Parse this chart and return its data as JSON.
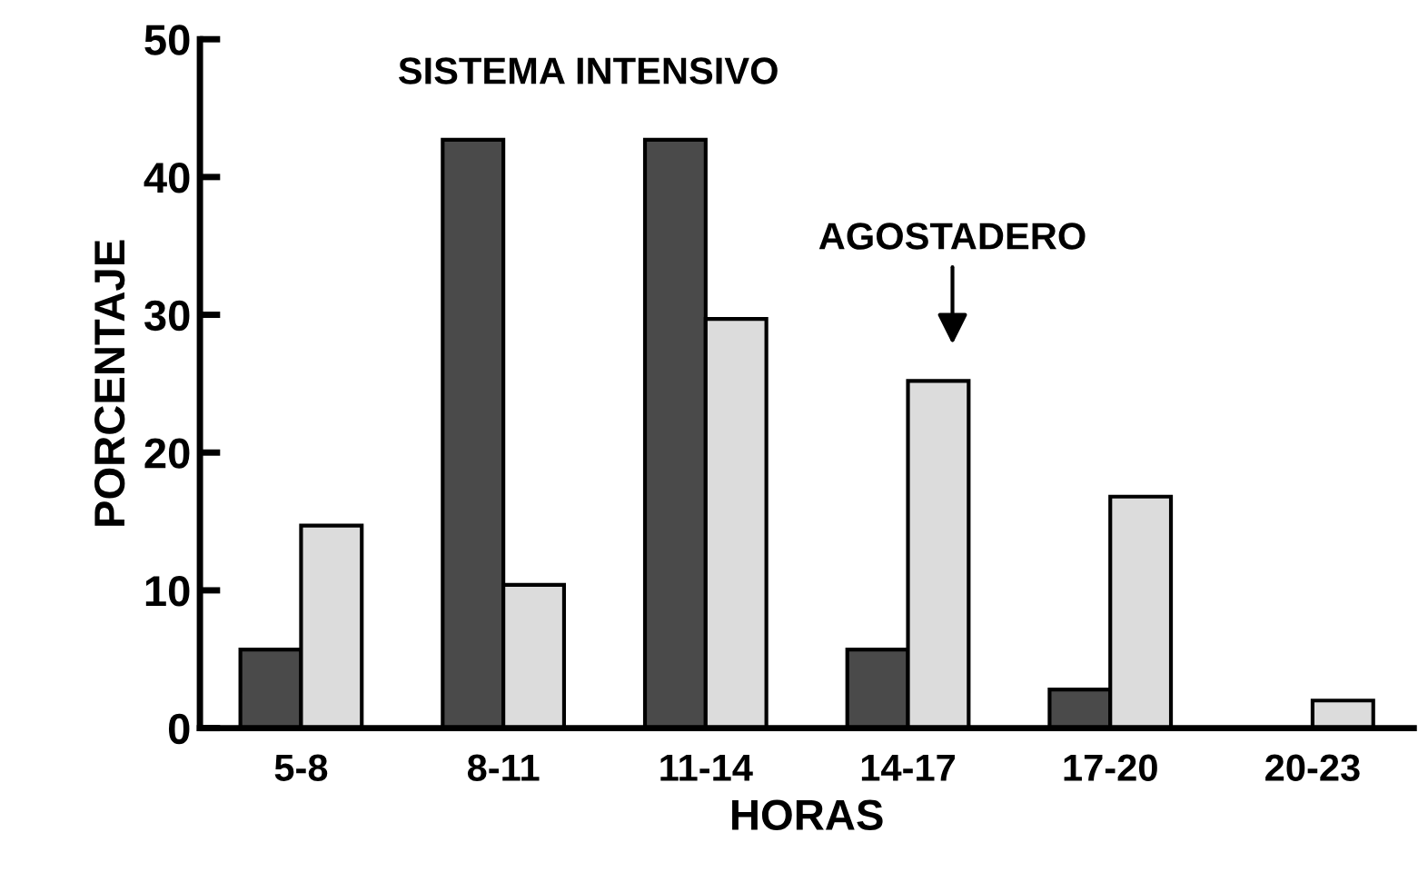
{
  "chart_data": {
    "type": "bar",
    "xlabel": "HORAS",
    "ylabel": "PORCENTAJE",
    "categories": [
      "5-8",
      "8-11",
      "11-14",
      "14-17",
      "17-20",
      "20-23"
    ],
    "series": [
      {
        "color": "#4a4a4a",
        "values": [
          5.7,
          42.7,
          42.7,
          5.7,
          2.8,
          null
        ]
      },
      {
        "color": "#dcdcdc",
        "values": [
          14.7,
          10.4,
          29.7,
          25.2,
          16.8,
          2.0
        ]
      }
    ],
    "ylim": [
      0,
      50
    ],
    "yticks": [
      0,
      10,
      20,
      30,
      40,
      50
    ],
    "grid": false,
    "legend": false,
    "annotations": [
      "SISTEMA INTENSIVO",
      "AGOSTADERO"
    ]
  }
}
